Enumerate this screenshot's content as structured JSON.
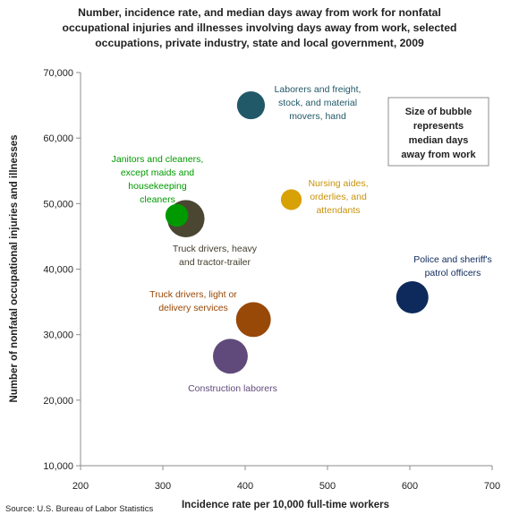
{
  "title_lines": [
    "Number, incidence rate, and median days away from work for nonfatal",
    "occupational injuries and illnesses involving days away from work, selected",
    "occupations, private industry, state and local government, 2009"
  ],
  "source": "Source: U.S. Bureau of Labor Statistics",
  "chart_data": {
    "type": "scatter",
    "xlabel": "Incidence rate per 10,000 full-time workers",
    "ylabel": "Number of nonfatal occupational injuries and illnesses",
    "xlim": [
      200,
      700
    ],
    "ylim": [
      10000,
      70000
    ],
    "x_ticks": [
      "200",
      "300",
      "400",
      "500",
      "600",
      "700"
    ],
    "y_ticks": [
      "10,000",
      "20,000",
      "30,000",
      "40,000",
      "50,000",
      "60,000",
      "70,000"
    ],
    "note": [
      "Size of bubble",
      "represents",
      "median days",
      "away from work"
    ],
    "grid": false,
    "series": [
      {
        "label": [
          "Laborers and freight,",
          "stock, and material",
          "movers, hand"
        ],
        "x": 407,
        "y": 65000,
        "size": 9,
        "color": "#215968",
        "label_color": "#215968"
      },
      {
        "label": [
          "Nursing aides,",
          "orderlies, and",
          "attendants"
        ],
        "x": 456,
        "y": 50600,
        "size": 5,
        "color": "#d8a106",
        "label_color": "#c9930b"
      },
      {
        "label": [
          "Janitors and cleaners,",
          "except maids and",
          "housekeeping",
          "cleaners"
        ],
        "x": 317,
        "y": 48200,
        "size": 6,
        "color": "#009900",
        "label_color": "#009900"
      },
      {
        "label": [
          "Truck drivers, heavy",
          "and tractor-trailer"
        ],
        "x": 328,
        "y": 47700,
        "size": 16,
        "color": "#4a4632",
        "label_color": "#403c2b"
      },
      {
        "label": [
          "Police and sheriff's",
          "patrol officers"
        ],
        "x": 603,
        "y": 35700,
        "size": 12,
        "color": "#0e2a5c",
        "label_color": "#0e2a5c"
      },
      {
        "label": [
          "Truck drivers, light or",
          "delivery services"
        ],
        "x": 410,
        "y": 32300,
        "size": 14,
        "color": "#984807",
        "label_color": "#984807"
      },
      {
        "label": [
          "Construction laborers"
        ],
        "x": 382,
        "y": 26700,
        "size": 14,
        "color": "#604a7b",
        "label_color": "#604a7b"
      }
    ]
  }
}
